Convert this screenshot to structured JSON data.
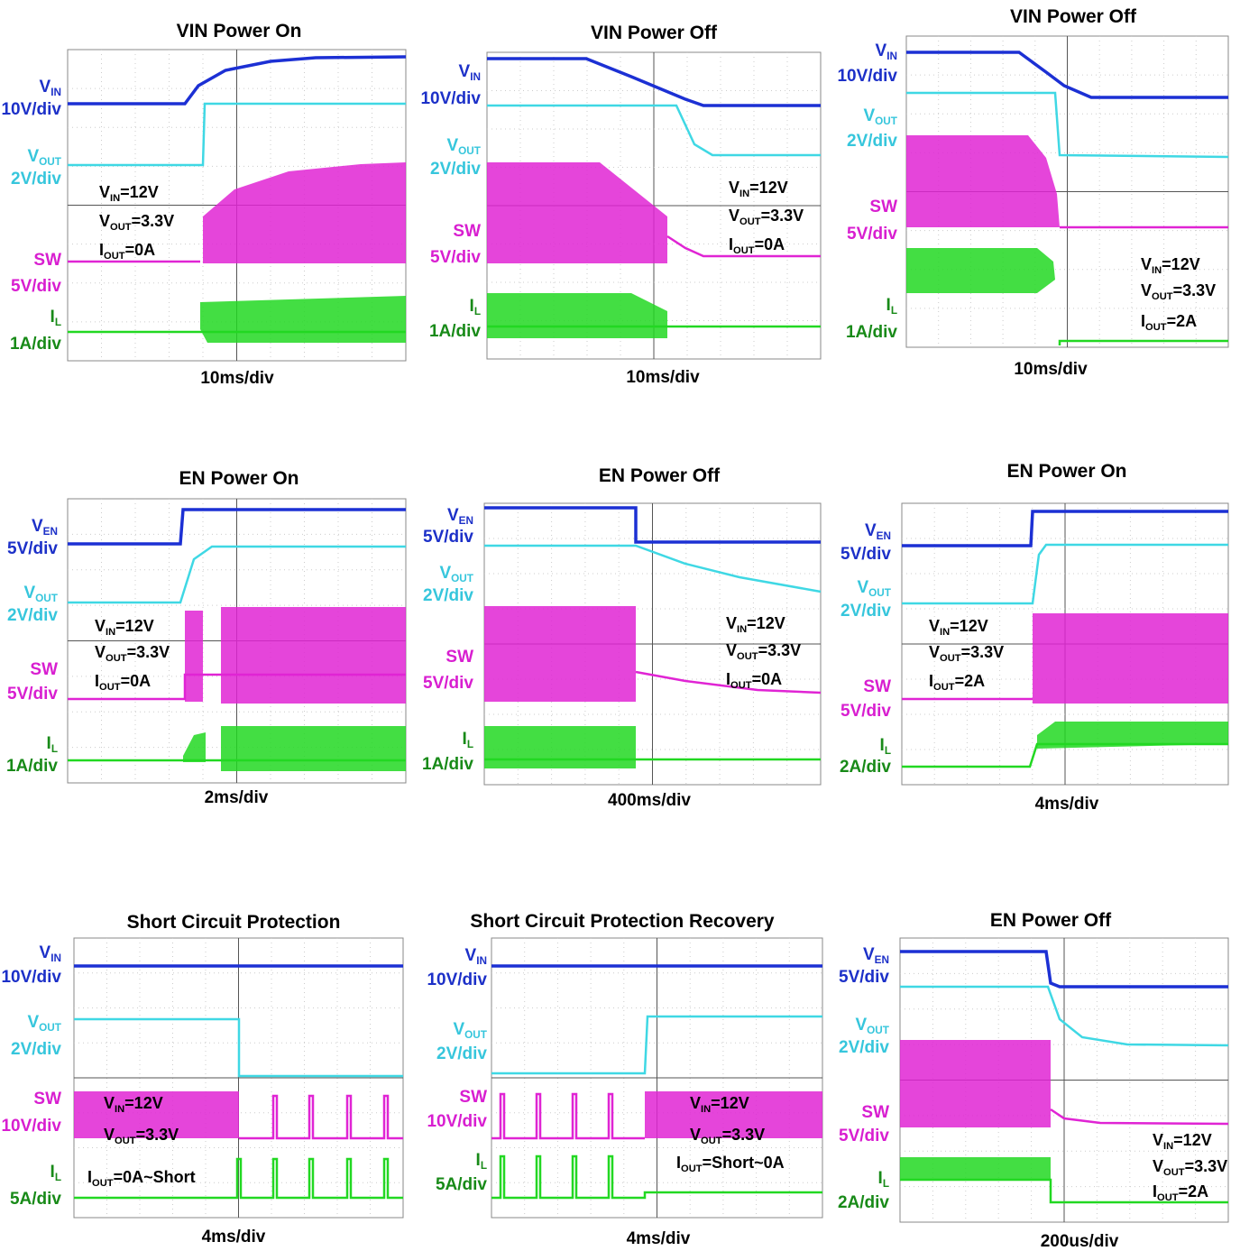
{
  "panels": [
    {
      "title": "VIN Power On",
      "channels": [
        {
          "name": "V",
          "sub": "IN",
          "scale": "10V/div"
        },
        {
          "name": "V",
          "sub": "OUT",
          "scale": "2V/div"
        },
        {
          "name": "SW",
          "scale": "5V/div"
        },
        {
          "name": "I",
          "sub": "L",
          "scale": "1A/div"
        }
      ],
      "annotations": [
        {
          "name": "V",
          "sub": "IN",
          "rest": "=12V"
        },
        {
          "name": "V",
          "sub": "OUT",
          "rest": "=3.3V"
        },
        {
          "name": "I",
          "sub": "OUT",
          "rest": "=0A"
        }
      ],
      "timebase": "10ms/div"
    },
    {
      "title": "VIN Power Off",
      "channels": [
        {
          "name": "V",
          "sub": "IN",
          "scale": "10V/div"
        },
        {
          "name": "V",
          "sub": "OUT",
          "scale": "2V/div"
        },
        {
          "name": "SW",
          "scale": "5V/div"
        },
        {
          "name": "I",
          "sub": "L",
          "scale": "1A/div"
        }
      ],
      "annotations": [
        {
          "name": "V",
          "sub": "IN",
          "rest": "=12V"
        },
        {
          "name": "V",
          "sub": "OUT",
          "rest": "=3.3V"
        },
        {
          "name": "I",
          "sub": "OUT",
          "rest": "=0A"
        }
      ],
      "timebase": "10ms/div"
    },
    {
      "title": "VIN Power Off",
      "channels": [
        {
          "name": "V",
          "sub": "IN",
          "scale": "10V/div"
        },
        {
          "name": "V",
          "sub": "OUT",
          "scale": "2V/div"
        },
        {
          "name": "SW",
          "scale": "5V/div"
        },
        {
          "name": "I",
          "sub": "L",
          "scale": "1A/div"
        }
      ],
      "annotations": [
        {
          "name": "V",
          "sub": "IN",
          "rest": "=12V"
        },
        {
          "name": "V",
          "sub": "OUT",
          "rest": "=3.3V"
        },
        {
          "name": "I",
          "sub": "OUT",
          "rest": "=2A"
        }
      ],
      "timebase": "10ms/div"
    },
    {
      "title": "EN Power On",
      "channels": [
        {
          "name": "V",
          "sub": "EN",
          "scale": "5V/div"
        },
        {
          "name": "V",
          "sub": "OUT",
          "scale": "2V/div"
        },
        {
          "name": "SW",
          "scale": "5V/div"
        },
        {
          "name": "I",
          "sub": "L",
          "scale": "1A/div"
        }
      ],
      "annotations": [
        {
          "name": "V",
          "sub": "IN",
          "rest": "=12V"
        },
        {
          "name": "V",
          "sub": "OUT",
          "rest": "=3.3V"
        },
        {
          "name": "I",
          "sub": "OUT",
          "rest": "=0A"
        }
      ],
      "timebase": "2ms/div"
    },
    {
      "title": "EN Power Off",
      "channels": [
        {
          "name": "V",
          "sub": "EN",
          "scale": "5V/div"
        },
        {
          "name": "V",
          "sub": "OUT",
          "scale": "2V/div"
        },
        {
          "name": "SW",
          "scale": "5V/div"
        },
        {
          "name": "I",
          "sub": "L",
          "scale": "1A/div"
        }
      ],
      "annotations": [
        {
          "name": "V",
          "sub": "IN",
          "rest": "=12V"
        },
        {
          "name": "V",
          "sub": "OUT",
          "rest": "=3.3V"
        },
        {
          "name": "I",
          "sub": "OUT",
          "rest": "=0A"
        }
      ],
      "timebase": "400ms/div"
    },
    {
      "title": "EN Power On",
      "channels": [
        {
          "name": "V",
          "sub": "EN",
          "scale": "5V/div"
        },
        {
          "name": "V",
          "sub": "OUT",
          "scale": "2V/div"
        },
        {
          "name": "SW",
          "scale": "5V/div"
        },
        {
          "name": "I",
          "sub": "L",
          "scale": "2A/div"
        }
      ],
      "annotations": [
        {
          "name": "V",
          "sub": "IN",
          "rest": "=12V"
        },
        {
          "name": "V",
          "sub": "OUT",
          "rest": "=3.3V"
        },
        {
          "name": "I",
          "sub": "OUT",
          "rest": "=2A"
        }
      ],
      "timebase": "4ms/div"
    },
    {
      "title": "Short Circuit Protection",
      "channels": [
        {
          "name": "V",
          "sub": "IN",
          "scale": "10V/div"
        },
        {
          "name": "V",
          "sub": "OUT",
          "scale": "2V/div"
        },
        {
          "name": "SW",
          "scale": "10V/div"
        },
        {
          "name": "I",
          "sub": "L",
          "scale": "5A/div"
        }
      ],
      "annotations": [
        {
          "name": "V",
          "sub": "IN",
          "rest": "=12V"
        },
        {
          "name": "V",
          "sub": "OUT",
          "rest": "=3.3V"
        },
        {
          "name": "I",
          "sub": "OUT",
          "rest": "=0A~Short"
        }
      ],
      "timebase": "4ms/div"
    },
    {
      "title": "Short Circuit Protection Recovery",
      "channels": [
        {
          "name": "V",
          "sub": "IN",
          "scale": "10V/div"
        },
        {
          "name": "V",
          "sub": "OUT",
          "scale": "2V/div"
        },
        {
          "name": "SW",
          "scale": "10V/div"
        },
        {
          "name": "I",
          "sub": "L",
          "scale": "5A/div"
        }
      ],
      "annotations": [
        {
          "name": "V",
          "sub": "IN",
          "rest": "=12V"
        },
        {
          "name": "V",
          "sub": "OUT",
          "rest": "=3.3V"
        },
        {
          "name": "I",
          "sub": "OUT",
          "rest": "=Short~0A"
        }
      ],
      "timebase": "4ms/div"
    },
    {
      "title": "EN Power Off",
      "channels": [
        {
          "name": "V",
          "sub": "EN",
          "scale": "5V/div"
        },
        {
          "name": "V",
          "sub": "OUT",
          "scale": "2V/div"
        },
        {
          "name": "SW",
          "scale": "5V/div"
        },
        {
          "name": "I",
          "sub": "L",
          "scale": "2A/div"
        }
      ],
      "annotations": [
        {
          "name": "V",
          "sub": "IN",
          "rest": "=12V"
        },
        {
          "name": "V",
          "sub": "OUT",
          "rest": "=3.3V"
        },
        {
          "name": "I",
          "sub": "OUT",
          "rest": "=2A"
        }
      ],
      "timebase": "200us/div"
    }
  ]
}
